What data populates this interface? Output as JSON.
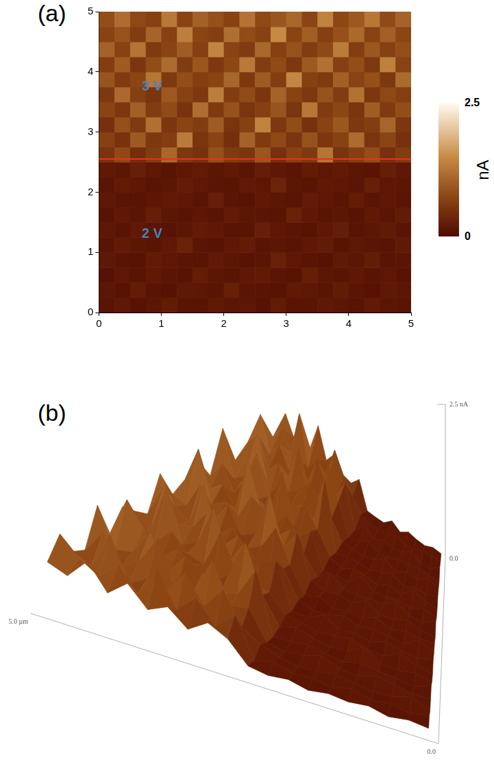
{
  "chart_data": [
    {
      "panel": "(a)",
      "type": "heatmap",
      "xlim": [
        0,
        5
      ],
      "ylim": [
        0,
        5
      ],
      "xticks": [
        0,
        1,
        2,
        3,
        4,
        5
      ],
      "yticks": [
        0,
        1,
        2,
        3,
        4,
        5
      ],
      "grid": false,
      "z": [
        [
          0.12,
          0.18,
          0.1,
          0.15,
          0.22,
          0.13,
          0.11,
          0.19,
          0.14,
          0.16,
          0.1,
          0.21,
          0.13,
          0.12,
          0.17,
          0.15,
          0.11,
          0.2,
          0.14,
          0.12
        ],
        [
          0.15,
          0.11,
          0.24,
          0.13,
          0.1,
          0.18,
          0.16,
          0.12,
          0.27,
          0.14,
          0.13,
          0.11,
          0.19,
          0.16,
          0.12,
          0.23,
          0.14,
          0.1,
          0.17,
          0.15
        ],
        [
          0.1,
          0.16,
          0.13,
          0.19,
          0.14,
          0.11,
          0.25,
          0.15,
          0.12,
          0.18,
          0.2,
          0.14,
          0.11,
          0.26,
          0.15,
          0.13,
          0.18,
          0.12,
          0.16,
          0.11
        ],
        [
          0.17,
          0.13,
          0.11,
          0.22,
          0.16,
          0.14,
          0.12,
          0.2,
          0.15,
          0.11,
          0.14,
          0.29,
          0.16,
          0.12,
          0.1,
          0.19,
          0.15,
          0.24,
          0.13,
          0.14
        ],
        [
          0.13,
          0.2,
          0.15,
          0.12,
          0.18,
          0.31,
          0.14,
          0.11,
          0.17,
          0.22,
          0.12,
          0.15,
          0.13,
          0.18,
          0.21,
          0.11,
          0.16,
          0.14,
          0.12,
          0.19
        ],
        [
          0.16,
          0.12,
          0.19,
          0.14,
          0.11,
          0.15,
          0.21,
          0.17,
          0.13,
          0.12,
          0.28,
          0.16,
          0.14,
          0.11,
          0.17,
          0.25,
          0.13,
          0.15,
          0.2,
          0.12
        ],
        [
          0.11,
          0.17,
          0.14,
          0.26,
          0.15,
          0.12,
          0.16,
          0.13,
          0.22,
          0.15,
          0.14,
          0.12,
          0.3,
          0.17,
          0.13,
          0.15,
          0.11,
          0.19,
          0.14,
          0.23
        ],
        [
          0.18,
          0.14,
          0.12,
          0.16,
          0.2,
          0.17,
          0.13,
          0.27,
          0.14,
          0.11,
          0.19,
          0.15,
          0.13,
          0.21,
          0.16,
          0.12,
          0.24,
          0.14,
          0.17,
          0.13
        ],
        [
          0.14,
          0.22,
          0.17,
          0.13,
          0.15,
          0.24,
          0.18,
          0.14,
          0.12,
          0.2,
          0.16,
          0.33,
          0.15,
          0.12,
          0.19,
          0.17,
          0.14,
          0.28,
          0.16,
          0.15
        ],
        [
          0.19,
          0.15,
          0.28,
          0.17,
          0.13,
          0.16,
          0.22,
          0.15,
          0.19,
          0.14,
          0.25,
          0.17,
          0.14,
          0.23,
          0.16,
          0.2,
          0.15,
          0.13,
          0.26,
          0.18
        ],
        [
          0.52,
          0.78,
          0.45,
          0.63,
          1.1,
          0.58,
          0.49,
          0.86,
          0.61,
          0.55,
          0.92,
          0.47,
          0.7,
          0.59,
          1.25,
          0.51,
          0.66,
          0.83,
          0.48,
          0.62
        ],
        [
          0.68,
          0.5,
          0.95,
          0.57,
          0.64,
          1.32,
          0.53,
          0.71,
          0.46,
          1.05,
          0.6,
          0.77,
          0.52,
          0.88,
          0.56,
          0.69,
          1.15,
          0.54,
          0.74,
          0.49
        ],
        [
          0.47,
          0.85,
          0.6,
          1.2,
          0.55,
          0.72,
          0.63,
          0.98,
          0.51,
          0.67,
          1.4,
          0.58,
          0.81,
          0.49,
          0.7,
          0.93,
          0.57,
          0.64,
          1.08,
          0.56
        ],
        [
          0.73,
          0.56,
          1.02,
          0.62,
          0.79,
          0.5,
          1.18,
          0.59,
          0.87,
          0.54,
          0.66,
          0.9,
          0.52,
          1.28,
          0.61,
          0.75,
          0.53,
          0.99,
          0.6,
          0.82
        ],
        [
          0.58,
          1.12,
          0.66,
          0.53,
          0.94,
          0.69,
          0.57,
          1.35,
          0.62,
          0.8,
          0.55,
          1.06,
          0.71,
          0.58,
          0.89,
          0.63,
          1.22,
          0.56,
          0.77,
          0.65
        ],
        [
          0.9,
          0.61,
          0.74,
          1.26,
          0.59,
          0.83,
          0.65,
          0.72,
          1.09,
          0.57,
          0.96,
          0.64,
          1.45,
          0.68,
          0.6,
          1.03,
          0.7,
          0.85,
          0.58,
          1.14
        ],
        [
          0.64,
          0.97,
          0.55,
          0.81,
          1.16,
          0.62,
          0.92,
          0.58,
          0.76,
          1.3,
          0.63,
          0.79,
          0.57,
          0.95,
          1.21,
          0.66,
          0.82,
          0.59,
          1.38,
          0.71
        ],
        [
          1.05,
          0.69,
          1.24,
          0.6,
          0.73,
          0.99,
          0.66,
          1.42,
          0.7,
          0.61,
          1.11,
          0.67,
          0.88,
          0.62,
          0.78,
          1.33,
          0.64,
          0.93,
          0.68,
          0.84
        ],
        [
          0.71,
          0.88,
          0.63,
          1.07,
          0.67,
          1.36,
          0.74,
          0.65,
          1.19,
          0.8,
          0.69,
          1.48,
          0.72,
          1.01,
          0.66,
          0.86,
          1.13,
          0.7,
          1.02,
          0.75
        ],
        [
          0.83,
          1.17,
          0.77,
          0.68,
          1.29,
          0.72,
          1.04,
          0.85,
          0.69,
          1.23,
          0.78,
          0.91,
          1.1,
          0.74,
          1.39,
          0.76,
          0.94,
          1.27,
          0.79,
          1.06
        ]
      ],
      "colorbar": {
        "range": [
          0,
          2.5
        ],
        "ticks": [
          0,
          2.5
        ],
        "label": "nA"
      },
      "hline": 2.55,
      "annotations": [
        {
          "text": "3 V",
          "x": 0.85,
          "y": 3.75
        },
        {
          "text": "2 V",
          "x": 0.85,
          "y": 1.3
        }
      ]
    },
    {
      "panel": "(b)",
      "type": "surface3d",
      "xlim": [
        0,
        5
      ],
      "ylim": [
        0,
        5
      ],
      "zlim": [
        0,
        2.5
      ],
      "yticks": [
        {
          "value": 5,
          "label": "5.0 µm"
        },
        {
          "value": 0,
          "label": "0.0"
        }
      ],
      "zticks": [
        {
          "value": 2.5,
          "label": "2.5 nA"
        },
        {
          "value": 0,
          "label": "0.0"
        }
      ]
    }
  ]
}
